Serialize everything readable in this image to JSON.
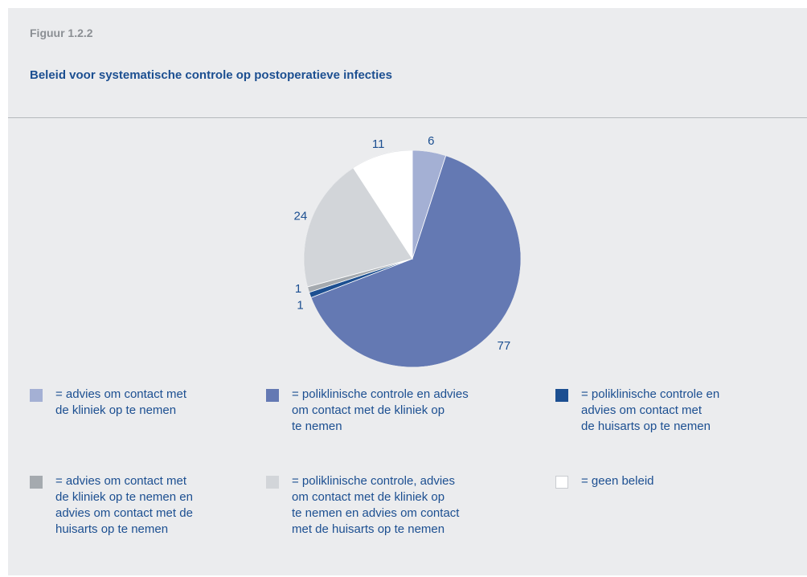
{
  "figure": {
    "label": "Figuur 1.2.2",
    "title": "Beleid voor systematische controle op postoperatieve infecties"
  },
  "chart_data": {
    "type": "pie",
    "title": "Beleid voor systematische controle op postoperatieve infecties",
    "categories": [
      "advies om contact met de kliniek op te nemen",
      "poliklinische controle en advies om contact met de kliniek op te nemen",
      "poliklinische controle en advies om contact met de huisarts op te nemen",
      "advies om contact met de kliniek op te nemen en advies om contact met de huisarts op te nemen",
      "poliklinische controle, advies om contact met de kliniek op te nemen en advies om contact met de huisarts op te nemen",
      "geen beleid"
    ],
    "values": [
      6,
      77,
      1,
      1,
      24,
      11
    ],
    "colors": [
      "#a4b0d4",
      "#6479b3",
      "#1c4f91",
      "#a5aaaf",
      "#d2d5d9",
      "#ffffff"
    ]
  },
  "legend": [
    {
      "prefix": "= ",
      "text": "advies om contact met de kliniek op te nemen",
      "lines": [
        "= advies om contact met",
        "de kliniek op te nemen"
      ],
      "color": "#a4b0d4"
    },
    {
      "prefix": "= ",
      "text": "poliklinische controle en advies om contact met de kliniek op te nemen",
      "lines": [
        "= poliklinische controle en advies",
        "om contact met de kliniek op",
        "te nemen"
      ],
      "color": "#6479b3"
    },
    {
      "prefix": "= ",
      "text": "poliklinische controle en advies om contact met de huisarts op te nemen",
      "lines": [
        "= poliklinische controle en",
        "advies om contact met",
        "de huisarts op te nemen"
      ],
      "color": "#1c4f91"
    },
    {
      "prefix": "= ",
      "text": "advies om contact met de kliniek op te nemen en advies om contact met de huisarts op te nemen",
      "lines": [
        "= advies om contact met",
        "de kliniek op te nemen en",
        "advies om contact met de",
        "huisarts op te nemen"
      ],
      "color": "#a5aaaf"
    },
    {
      "prefix": "= ",
      "text": "poliklinische controle, advies om contact met de kliniek op te nemen en advies om contact met de huisarts op te nemen",
      "lines": [
        "= poliklinische controle, advies",
        "om contact met de kliniek op",
        "te nemen en advies om contact",
        "met de huisarts op te nemen"
      ],
      "color": "#d2d5d9"
    },
    {
      "prefix": "= ",
      "text": "geen beleid",
      "lines": [
        "= geen beleid"
      ],
      "color": "#ffffff"
    }
  ]
}
